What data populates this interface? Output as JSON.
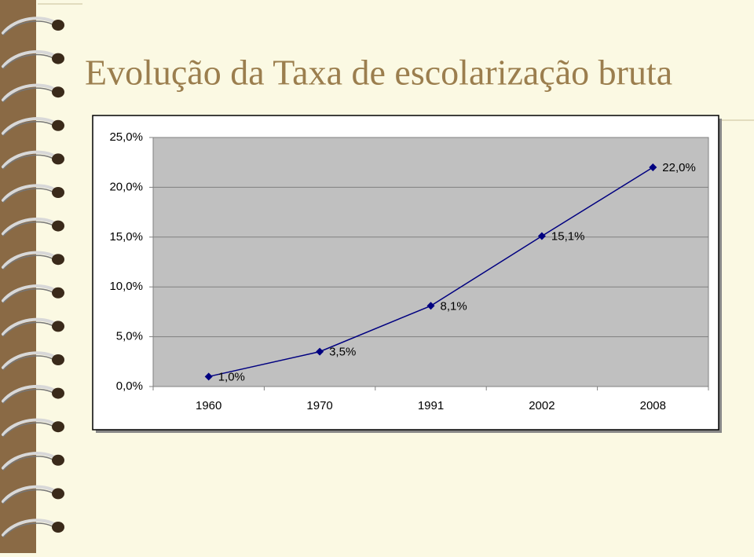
{
  "chart_data": {
    "type": "line",
    "title": "Evolução da Taxa de escolarização bruta",
    "categories": [
      "1960",
      "1970",
      "1991",
      "2002",
      "2008"
    ],
    "values": [
      1.0,
      3.5,
      8.1,
      15.1,
      22.0
    ],
    "value_labels": [
      "1,0%",
      "3,5%",
      "8,1%",
      "15,1%",
      "22,0%"
    ],
    "color": "#000080",
    "ylim": [
      0,
      25
    ],
    "yticks": [
      {
        "value": 0,
        "label": "0,0%"
      },
      {
        "value": 5,
        "label": "5,0%"
      },
      {
        "value": 10,
        "label": "10,0%"
      },
      {
        "value": 15,
        "label": "15,0%"
      },
      {
        "value": 20,
        "label": "20,0%"
      },
      {
        "value": 25,
        "label": "25,0%"
      }
    ],
    "grid": true
  }
}
